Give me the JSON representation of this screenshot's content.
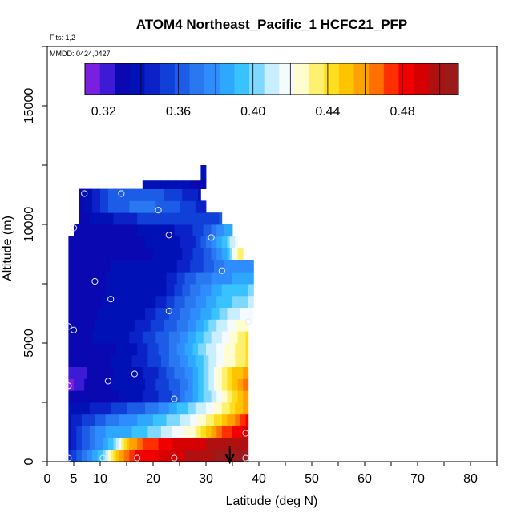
{
  "chart_data": {
    "type": "heatmap",
    "title": "ATOM4 Northeast_Pacific_1 HCFC21_PFP",
    "flights_note": "Flts: 1,2",
    "date_note": "MMDD: 0424,0427",
    "xlabel": "Latitude (deg N)",
    "ylabel": "Altitude (m)",
    "xlim": [
      0,
      85
    ],
    "ylim": [
      0,
      17500
    ],
    "x_ticks": [
      0,
      5,
      10,
      20,
      30,
      40,
      50,
      60,
      70,
      80
    ],
    "y_ticks": [
      0,
      5000,
      10000,
      15000
    ],
    "colorbar": {
      "range": [
        0.31,
        0.51
      ],
      "ticks": [
        0.32,
        0.36,
        0.4,
        0.44,
        0.48
      ],
      "tick_labels": [
        "0.32",
        "0.36",
        "0.40",
        "0.44",
        "0.48"
      ]
    },
    "latitude_marker": 34.5,
    "grid": false,
    "bands": [
      {
        "alt": [
          0,
          500
        ],
        "lat": [
          4,
          38
        ],
        "anchors": [
          [
            4,
            0.345
          ],
          [
            8,
            0.38
          ],
          [
            11,
            0.4
          ],
          [
            12,
            0.43
          ],
          [
            14,
            0.46
          ],
          [
            17,
            0.48
          ],
          [
            30,
            0.5
          ],
          [
            38,
            0.51
          ]
        ]
      },
      {
        "alt": [
          500,
          1000
        ],
        "lat": [
          4,
          38
        ],
        "anchors": [
          [
            4,
            0.34
          ],
          [
            10,
            0.38
          ],
          [
            13,
            0.4
          ],
          [
            15,
            0.45
          ],
          [
            18,
            0.47
          ],
          [
            25,
            0.49
          ],
          [
            38,
            0.5
          ]
        ]
      },
      {
        "alt": [
          1000,
          1500
        ],
        "lat": [
          4,
          38
        ],
        "anchors": [
          [
            4,
            0.34
          ],
          [
            10,
            0.38
          ],
          [
            16,
            0.39
          ],
          [
            20,
            0.4
          ],
          [
            28,
            0.43
          ],
          [
            33,
            0.47
          ],
          [
            38,
            0.49
          ]
        ]
      },
      {
        "alt": [
          1500,
          2000
        ],
        "lat": [
          4,
          38
        ],
        "anchors": [
          [
            4,
            0.34
          ],
          [
            12,
            0.37
          ],
          [
            20,
            0.39
          ],
          [
            26,
            0.41
          ],
          [
            32,
            0.44
          ],
          [
            38,
            0.48
          ]
        ]
      },
      {
        "alt": [
          2000,
          2500
        ],
        "lat": [
          4,
          38
        ],
        "anchors": [
          [
            4,
            0.335
          ],
          [
            10,
            0.345
          ],
          [
            20,
            0.37
          ],
          [
            27,
            0.4
          ],
          [
            33,
            0.43
          ],
          [
            38,
            0.46
          ]
        ]
      },
      {
        "alt": [
          2500,
          3000
        ],
        "lat": [
          4,
          38
        ],
        "anchors": [
          [
            4,
            0.33
          ],
          [
            16,
            0.335
          ],
          [
            24,
            0.36
          ],
          [
            30,
            0.4
          ],
          [
            34,
            0.43
          ],
          [
            38,
            0.46
          ]
        ]
      },
      {
        "alt": [
          3000,
          3500
        ],
        "lat": [
          4,
          38
        ],
        "anchors": [
          [
            4,
            0.315
          ],
          [
            8,
            0.33
          ],
          [
            18,
            0.34
          ],
          [
            26,
            0.37
          ],
          [
            31,
            0.41
          ],
          [
            34,
            0.44
          ],
          [
            38,
            0.47
          ]
        ]
      },
      {
        "alt": [
          3500,
          4000
        ],
        "lat": [
          4,
          38
        ],
        "anchors": [
          [
            4,
            0.32
          ],
          [
            10,
            0.33
          ],
          [
            20,
            0.345
          ],
          [
            27,
            0.38
          ],
          [
            31,
            0.41
          ],
          [
            34,
            0.44
          ],
          [
            38,
            0.46
          ]
        ]
      },
      {
        "alt": [
          4000,
          4500
        ],
        "lat": [
          4,
          38
        ],
        "anchors": [
          [
            4,
            0.33
          ],
          [
            14,
            0.335
          ],
          [
            22,
            0.36
          ],
          [
            28,
            0.39
          ],
          [
            33,
            0.42
          ],
          [
            38,
            0.44
          ]
        ]
      },
      {
        "alt": [
          4500,
          5000
        ],
        "lat": [
          4,
          38
        ],
        "anchors": [
          [
            4,
            0.33
          ],
          [
            15,
            0.335
          ],
          [
            24,
            0.37
          ],
          [
            29,
            0.4
          ],
          [
            33,
            0.42
          ],
          [
            38,
            0.44
          ]
        ]
      },
      {
        "alt": [
          5000,
          5500
        ],
        "lat": [
          4,
          38
        ],
        "anchors": [
          [
            4,
            0.33
          ],
          [
            15,
            0.34
          ],
          [
            24,
            0.37
          ],
          [
            30,
            0.4
          ],
          [
            34,
            0.42
          ],
          [
            38,
            0.44
          ]
        ]
      },
      {
        "alt": [
          5500,
          6000
        ],
        "lat": [
          4,
          38
        ],
        "anchors": [
          [
            4,
            0.33
          ],
          [
            16,
            0.34
          ],
          [
            26,
            0.37
          ],
          [
            31,
            0.4
          ],
          [
            35,
            0.42
          ],
          [
            38,
            0.43
          ]
        ]
      },
      {
        "alt": [
          6000,
          6500
        ],
        "lat": [
          4,
          39
        ],
        "anchors": [
          [
            4,
            0.33
          ],
          [
            18,
            0.34
          ],
          [
            26,
            0.37
          ],
          [
            31,
            0.39
          ],
          [
            35,
            0.41
          ],
          [
            39,
            0.42
          ]
        ]
      },
      {
        "alt": [
          6500,
          7000
        ],
        "lat": [
          4,
          39
        ],
        "anchors": [
          [
            4,
            0.33
          ],
          [
            20,
            0.34
          ],
          [
            27,
            0.37
          ],
          [
            32,
            0.39
          ],
          [
            36,
            0.4
          ],
          [
            39,
            0.41
          ]
        ]
      },
      {
        "alt": [
          7000,
          7500
        ],
        "lat": [
          4,
          39
        ],
        "anchors": [
          [
            4,
            0.33
          ],
          [
            22,
            0.34
          ],
          [
            28,
            0.37
          ],
          [
            33,
            0.39
          ],
          [
            39,
            0.4
          ]
        ]
      },
      {
        "alt": [
          7500,
          8000
        ],
        "lat": [
          4,
          39
        ],
        "anchors": [
          [
            4,
            0.33
          ],
          [
            22,
            0.34
          ],
          [
            29,
            0.37
          ],
          [
            34,
            0.38
          ],
          [
            39,
            0.39
          ]
        ]
      },
      {
        "alt": [
          8000,
          8500
        ],
        "lat": [
          4,
          39
        ],
        "anchors": [
          [
            4,
            0.33
          ],
          [
            24,
            0.34
          ],
          [
            30,
            0.36
          ],
          [
            35,
            0.38
          ],
          [
            39,
            0.375
          ]
        ]
      },
      {
        "alt": [
          8500,
          9000
        ],
        "lat": [
          4,
          37
        ],
        "anchors": [
          [
            4,
            0.33
          ],
          [
            24,
            0.335
          ],
          [
            30,
            0.36
          ],
          [
            34,
            0.39
          ],
          [
            36,
            0.43
          ],
          [
            37,
            0.44
          ]
        ]
      },
      {
        "alt": [
          9000,
          9500
        ],
        "lat": [
          4,
          36
        ],
        "anchors": [
          [
            4,
            0.33
          ],
          [
            22,
            0.335
          ],
          [
            28,
            0.35
          ],
          [
            32,
            0.38
          ],
          [
            35,
            0.41
          ],
          [
            36,
            0.42
          ]
        ]
      },
      {
        "alt": [
          9500,
          10000
        ],
        "lat": [
          5,
          35
        ],
        "anchors": [
          [
            5,
            0.33
          ],
          [
            20,
            0.335
          ],
          [
            26,
            0.345
          ],
          [
            30,
            0.36
          ],
          [
            33,
            0.38
          ],
          [
            35,
            0.39
          ]
        ]
      },
      {
        "alt": [
          10000,
          10500
        ],
        "lat": [
          6,
          33
        ],
        "anchors": [
          [
            6,
            0.33
          ],
          [
            14,
            0.345
          ],
          [
            20,
            0.355
          ],
          [
            26,
            0.355
          ],
          [
            30,
            0.35
          ],
          [
            33,
            0.36
          ]
        ]
      },
      {
        "alt": [
          10500,
          11000
        ],
        "lat": [
          6,
          30
        ],
        "anchors": [
          [
            6,
            0.33
          ],
          [
            12,
            0.36
          ],
          [
            18,
            0.37
          ],
          [
            24,
            0.36
          ],
          [
            28,
            0.35
          ],
          [
            30,
            0.345
          ]
        ]
      },
      {
        "alt": [
          11000,
          11500
        ],
        "lat": [
          6,
          29
        ],
        "anchors": [
          [
            6,
            0.33
          ],
          [
            12,
            0.36
          ],
          [
            18,
            0.365
          ],
          [
            24,
            0.355
          ],
          [
            29,
            0.34
          ]
        ]
      },
      {
        "alt": [
          11500,
          11850
        ],
        "lat": [
          18,
          30
        ],
        "anchors": [
          [
            18,
            0.335
          ],
          [
            26,
            0.335
          ],
          [
            30,
            0.33
          ]
        ]
      },
      {
        "alt": [
          11850,
          12500
        ],
        "lat": [
          29,
          30
        ],
        "anchors": [
          [
            29,
            0.335
          ],
          [
            30,
            0.34
          ]
        ]
      }
    ],
    "samples": [
      [
        4,
        150
      ],
      [
        10.5,
        150
      ],
      [
        17,
        150
      ],
      [
        24,
        150
      ],
      [
        37.5,
        150
      ],
      [
        37.5,
        1200
      ],
      [
        24,
        2650
      ],
      [
        11.5,
        3400
      ],
      [
        4,
        3200
      ],
      [
        16.5,
        3700
      ],
      [
        4,
        5700
      ],
      [
        5,
        5550
      ],
      [
        23,
        6350
      ],
      [
        38,
        5900
      ],
      [
        12,
        6850
      ],
      [
        9,
        7600
      ],
      [
        33,
        8050
      ],
      [
        5,
        9850
      ],
      [
        23,
        9550
      ],
      [
        31,
        9450
      ],
      [
        7,
        11300
      ],
      [
        14,
        11300
      ],
      [
        21,
        10600
      ]
    ]
  }
}
